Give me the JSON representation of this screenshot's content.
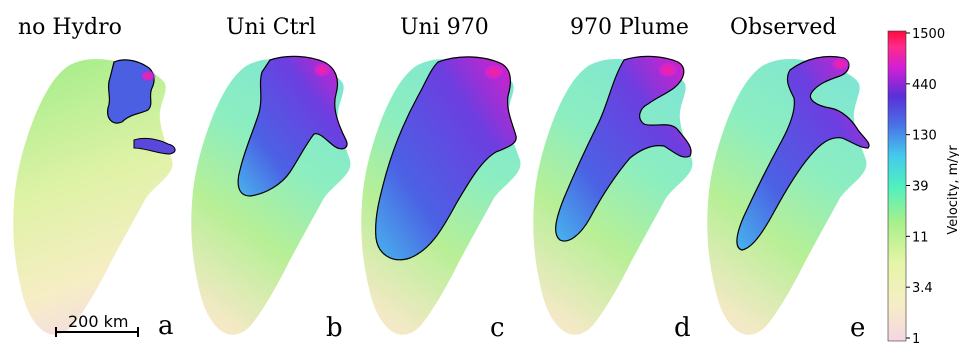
{
  "panels": [
    {
      "title": "no Hydro",
      "letter": "a"
    },
    {
      "title": "Uni Ctrl",
      "letter": "b"
    },
    {
      "title": "Uni 970",
      "letter": "c"
    },
    {
      "title": "970 Plume",
      "letter": "d"
    },
    {
      "title": "Observed",
      "letter": "e"
    }
  ],
  "scale_bar": {
    "label": "200 km"
  },
  "colorbar": {
    "label": "Velocity, m/yr",
    "ticks": [
      "1500",
      "440",
      "130",
      "39",
      "11",
      "3.4",
      "1"
    ],
    "colors": [
      "#f5d6e3",
      "#f7f2b8",
      "#a9f08a",
      "#4ff0c0",
      "#44c8ee",
      "#4a6fe6",
      "#5a2fd8",
      "#d21fd6",
      "#ff2a8a",
      "#ff0a3a"
    ]
  },
  "colors": {
    "ice_base": "#a4e88a",
    "ice_light": "#f4f3b8",
    "fast_flow": "#5a43de",
    "outline": "#000000"
  }
}
